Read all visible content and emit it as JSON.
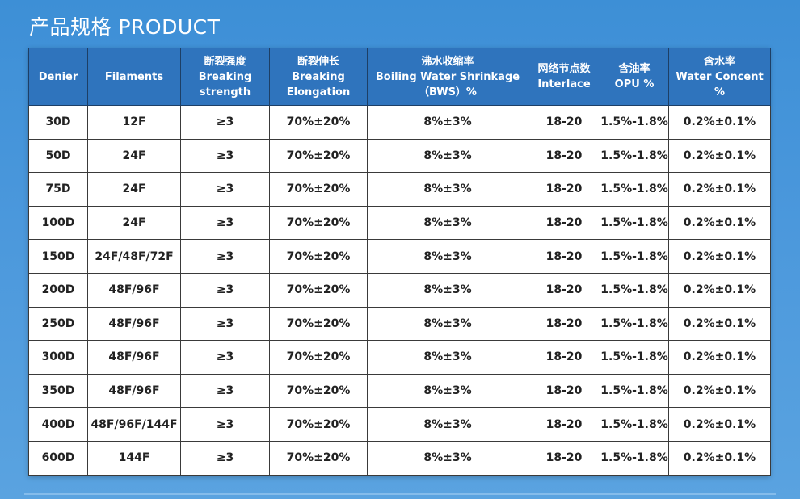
{
  "page": {
    "title": "产品规格 PRODUCT"
  },
  "table": {
    "headers": [
      [
        "Denier"
      ],
      [
        "Filaments"
      ],
      [
        "断裂强度",
        "Breaking",
        "strength"
      ],
      [
        "断裂伸长",
        "Breaking",
        "Elongation"
      ],
      [
        "沸水收缩率",
        "Boiling Water Shrinkage",
        "（BWS）%"
      ],
      [
        "网络节点数",
        "Interlace"
      ],
      [
        "含油率",
        "OPU %"
      ],
      [
        "含水率",
        "Water Concent %"
      ]
    ],
    "rows": [
      [
        "30D",
        "12F",
        "≥3",
        "70%±20%",
        "8%±3%",
        "18-20",
        "1.5%-1.8%",
        "0.2%±0.1%"
      ],
      [
        "50D",
        "24F",
        "≥3",
        "70%±20%",
        "8%±3%",
        "18-20",
        "1.5%-1.8%",
        "0.2%±0.1%"
      ],
      [
        "75D",
        "24F",
        "≥3",
        "70%±20%",
        "8%±3%",
        "18-20",
        "1.5%-1.8%",
        "0.2%±0.1%"
      ],
      [
        "100D",
        "24F",
        "≥3",
        "70%±20%",
        "8%±3%",
        "18-20",
        "1.5%-1.8%",
        "0.2%±0.1%"
      ],
      [
        "150D",
        "24F/48F/72F",
        "≥3",
        "70%±20%",
        "8%±3%",
        "18-20",
        "1.5%-1.8%",
        "0.2%±0.1%"
      ],
      [
        "200D",
        "48F/96F",
        "≥3",
        "70%±20%",
        "8%±3%",
        "18-20",
        "1.5%-1.8%",
        "0.2%±0.1%"
      ],
      [
        "250D",
        "48F/96F",
        "≥3",
        "70%±20%",
        "8%±3%",
        "18-20",
        "1.5%-1.8%",
        "0.2%±0.1%"
      ],
      [
        "300D",
        "48F/96F",
        "≥3",
        "70%±20%",
        "8%±3%",
        "18-20",
        "1.5%-1.8%",
        "0.2%±0.1%"
      ],
      [
        "350D",
        "48F/96F",
        "≥3",
        "70%±20%",
        "8%±3%",
        "18-20",
        "1.5%-1.8%",
        "0.2%±0.1%"
      ],
      [
        "400D",
        "48F/96F/144F",
        "≥3",
        "70%±20%",
        "8%±3%",
        "18-20",
        "1.5%-1.8%",
        "0.2%±0.1%"
      ],
      [
        "600D",
        "144F",
        "≥3",
        "70%±20%",
        "8%±3%",
        "18-20",
        "1.5%-1.8%",
        "0.2%±0.1%"
      ]
    ]
  },
  "colors": {
    "background": "#4b98dc",
    "header_fill": "#2f74bd",
    "cell_fill": "#ffffff"
  }
}
